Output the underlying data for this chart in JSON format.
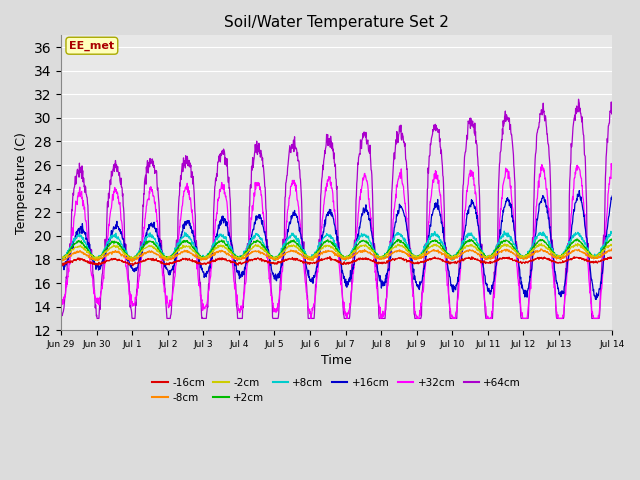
{
  "title": "Soil/Water Temperature Set 2",
  "xlabel": "Time",
  "ylabel": "Temperature (C)",
  "ylim": [
    12,
    37
  ],
  "yticks": [
    12,
    14,
    16,
    18,
    20,
    22,
    24,
    26,
    28,
    30,
    32,
    34,
    36
  ],
  "background_color": "#dcdcdc",
  "plot_bg_color": "#e8e8e8",
  "series_colors": {
    "-16cm": "#dd0000",
    "-8cm": "#ff8800",
    "-2cm": "#cccc00",
    "+2cm": "#00bb00",
    "+8cm": "#00cccc",
    "+16cm": "#0000cc",
    "+32cm": "#ff00ff",
    "+64cm": "#aa00cc"
  },
  "annotation_text": "EE_met",
  "annotation_color": "#aa0000",
  "annotation_bg": "#ffffbb",
  "n_points": 1500,
  "t_start": 0,
  "t_end": 15.5,
  "xtick_positions": [
    0,
    1,
    2,
    3,
    4,
    5,
    6,
    7,
    8,
    9,
    10,
    11,
    12,
    13,
    14,
    15.5
  ],
  "xtick_labels": [
    "Jun 29",
    "Jun 30",
    "Jul 1",
    "Jul 2",
    "Jul 3",
    "Jul 4",
    "Jul 5",
    "Jul 6",
    "Jul 7",
    "Jul 8",
    "Jul 9",
    "Jul 10",
    "Jul 11",
    "Jul 12",
    "Jul 13",
    "Jul 14"
  ]
}
